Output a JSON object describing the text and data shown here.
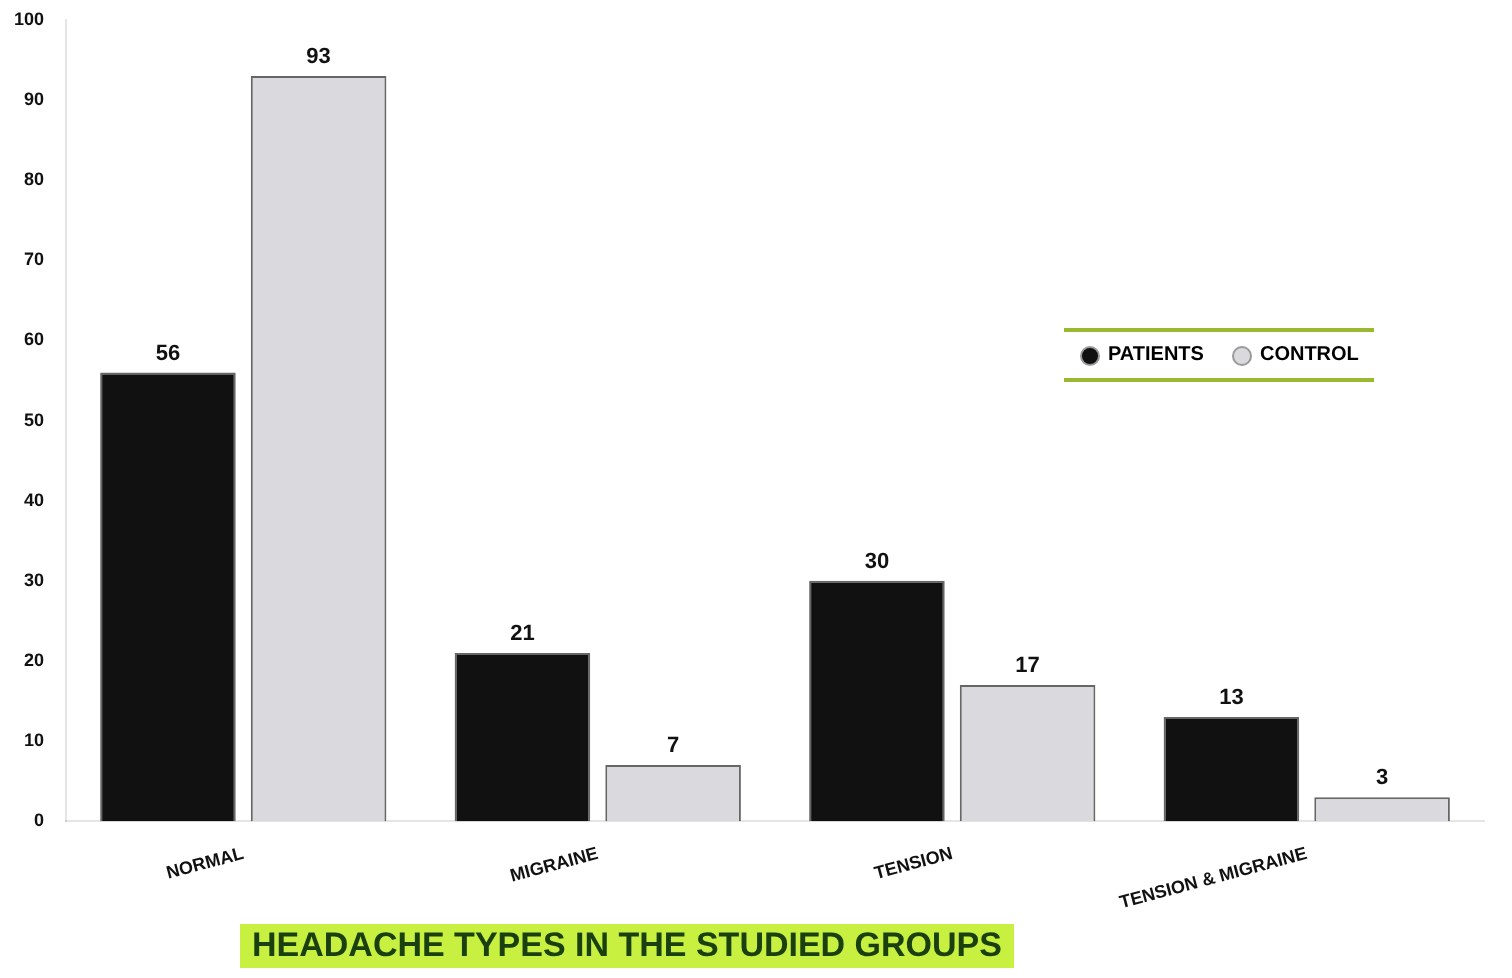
{
  "chart_data": {
    "type": "bar",
    "title": "HEADACHE TYPES IN THE STUDIED GROUPS",
    "categories": [
      "NORMAL",
      "MIGRAINE",
      "TENSION",
      "TENSION & MIGRAINE"
    ],
    "series": [
      {
        "name": "PATIENTS",
        "color": "#111111",
        "values": [
          56,
          21,
          30,
          13
        ]
      },
      {
        "name": "CONTROL",
        "color": "#d9d9de",
        "values": [
          93,
          7,
          17,
          3
        ]
      }
    ],
    "ylim": [
      0,
      100
    ],
    "yticks": [
      0,
      10,
      20,
      30,
      40,
      50,
      60,
      70,
      80,
      90,
      100
    ],
    "grid": false,
    "legend": "right",
    "data_labels": true
  }
}
